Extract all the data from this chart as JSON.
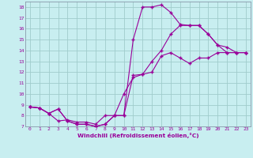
{
  "xlabel": "Windchill (Refroidissement éolien,°C)",
  "bg_color": "#c8eef0",
  "grid_color": "#a0cccc",
  "line_color": "#990099",
  "xlim": [
    -0.5,
    23.5
  ],
  "ylim": [
    7,
    18.5
  ],
  "xticks": [
    0,
    1,
    2,
    3,
    4,
    5,
    6,
    7,
    8,
    9,
    10,
    11,
    12,
    13,
    14,
    15,
    16,
    17,
    18,
    19,
    20,
    21,
    22,
    23
  ],
  "yticks": [
    7,
    8,
    9,
    10,
    11,
    12,
    13,
    14,
    15,
    16,
    17,
    18
  ],
  "line1_x": [
    0,
    1,
    2,
    3,
    4,
    5,
    6,
    7,
    8,
    9,
    10,
    11,
    12,
    13,
    14,
    15,
    16,
    17,
    18,
    19,
    20,
    21,
    22,
    23
  ],
  "line1_y": [
    8.8,
    8.7,
    8.2,
    8.6,
    7.5,
    7.2,
    7.2,
    7.0,
    7.2,
    8.0,
    8.0,
    15.0,
    18.0,
    18.0,
    18.2,
    17.5,
    16.4,
    16.3,
    16.3,
    15.5,
    14.5,
    13.8,
    13.8,
    13.8
  ],
  "line2_x": [
    0,
    1,
    2,
    3,
    4,
    5,
    6,
    7,
    8,
    9,
    10,
    11,
    12,
    13,
    14,
    15,
    16,
    17,
    18,
    19,
    20,
    21,
    22,
    23
  ],
  "line2_y": [
    8.8,
    8.7,
    8.2,
    7.5,
    7.6,
    7.4,
    7.4,
    7.2,
    8.0,
    8.0,
    10.0,
    11.5,
    11.8,
    13.0,
    14.0,
    15.5,
    16.3,
    16.3,
    16.3,
    15.5,
    14.5,
    14.3,
    13.8,
    13.8
  ],
  "line3_x": [
    0,
    1,
    2,
    3,
    4,
    5,
    6,
    7,
    8,
    9,
    10,
    11,
    12,
    13,
    14,
    15,
    16,
    17,
    18,
    19,
    20,
    21,
    22,
    23
  ],
  "line3_y": [
    8.8,
    8.7,
    8.2,
    8.6,
    7.5,
    7.2,
    7.2,
    7.0,
    7.2,
    8.0,
    8.0,
    11.7,
    11.8,
    12.0,
    13.5,
    13.8,
    13.3,
    12.8,
    13.3,
    13.3,
    13.8,
    13.8,
    13.8,
    13.8
  ]
}
